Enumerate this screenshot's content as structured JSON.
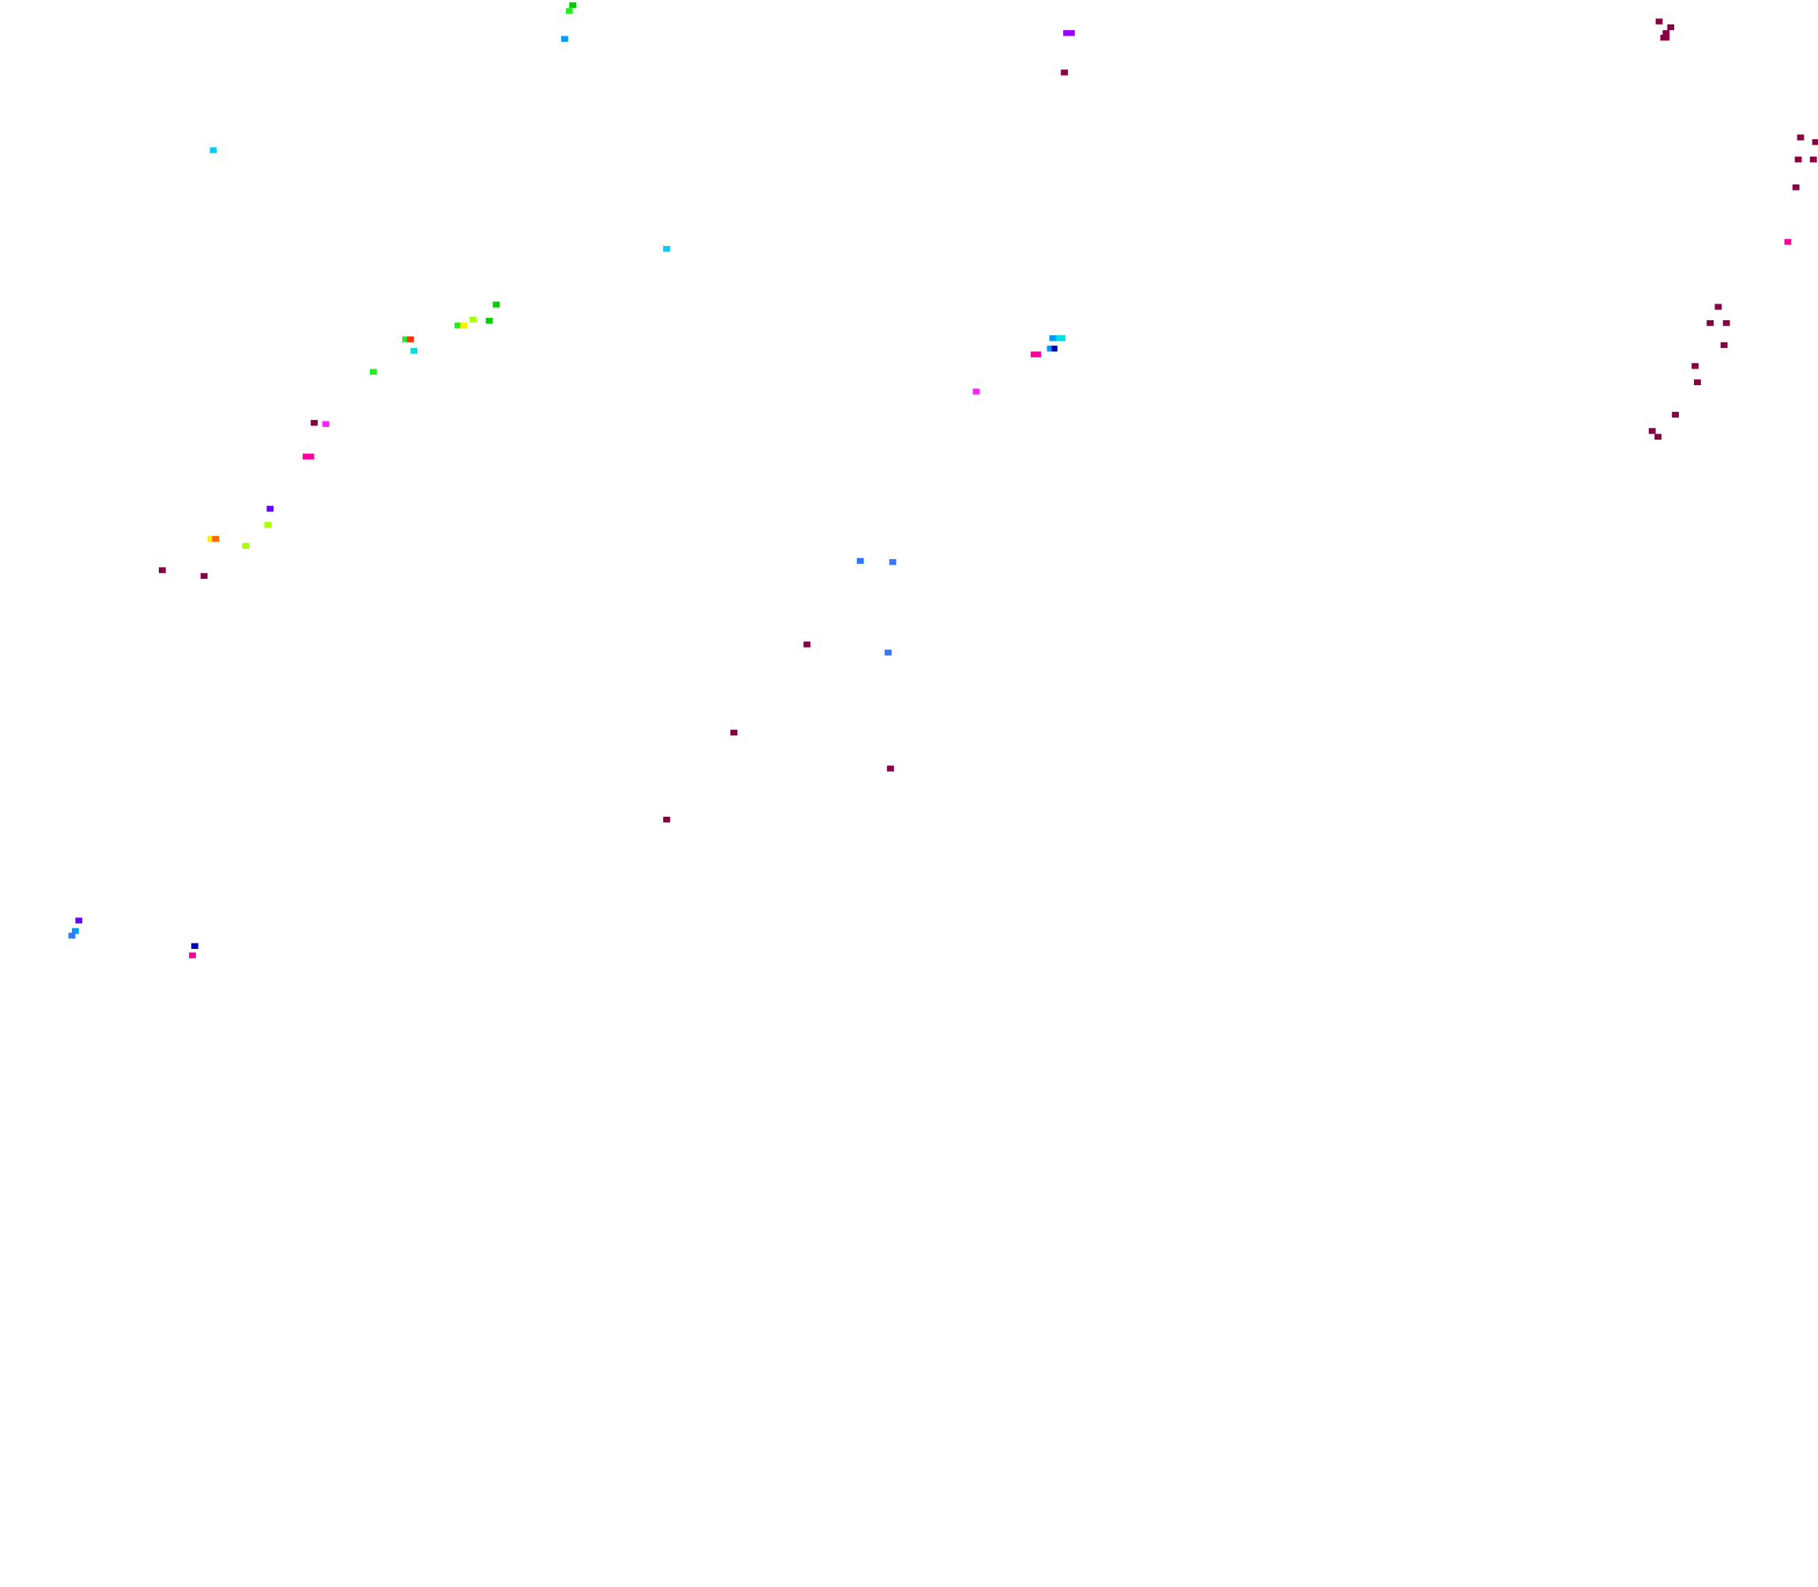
{
  "background": "#ffffff",
  "palette": {
    "maroon": "#880044",
    "magenta": "#ff22ff",
    "pink": "#ff0099",
    "purple": "#9900ff",
    "violet": "#6600ff",
    "blue": "#3377ff",
    "azure": "#0099ff",
    "navy": "#0000aa",
    "cyan": "#00ccff",
    "teal": "#00dddd",
    "green": "#00cc00",
    "lime": "#22ee22",
    "yellowgreen": "#aaff00",
    "yellow": "#ffee00",
    "orange": "#ff6600",
    "red": "#ff3300"
  }
}
